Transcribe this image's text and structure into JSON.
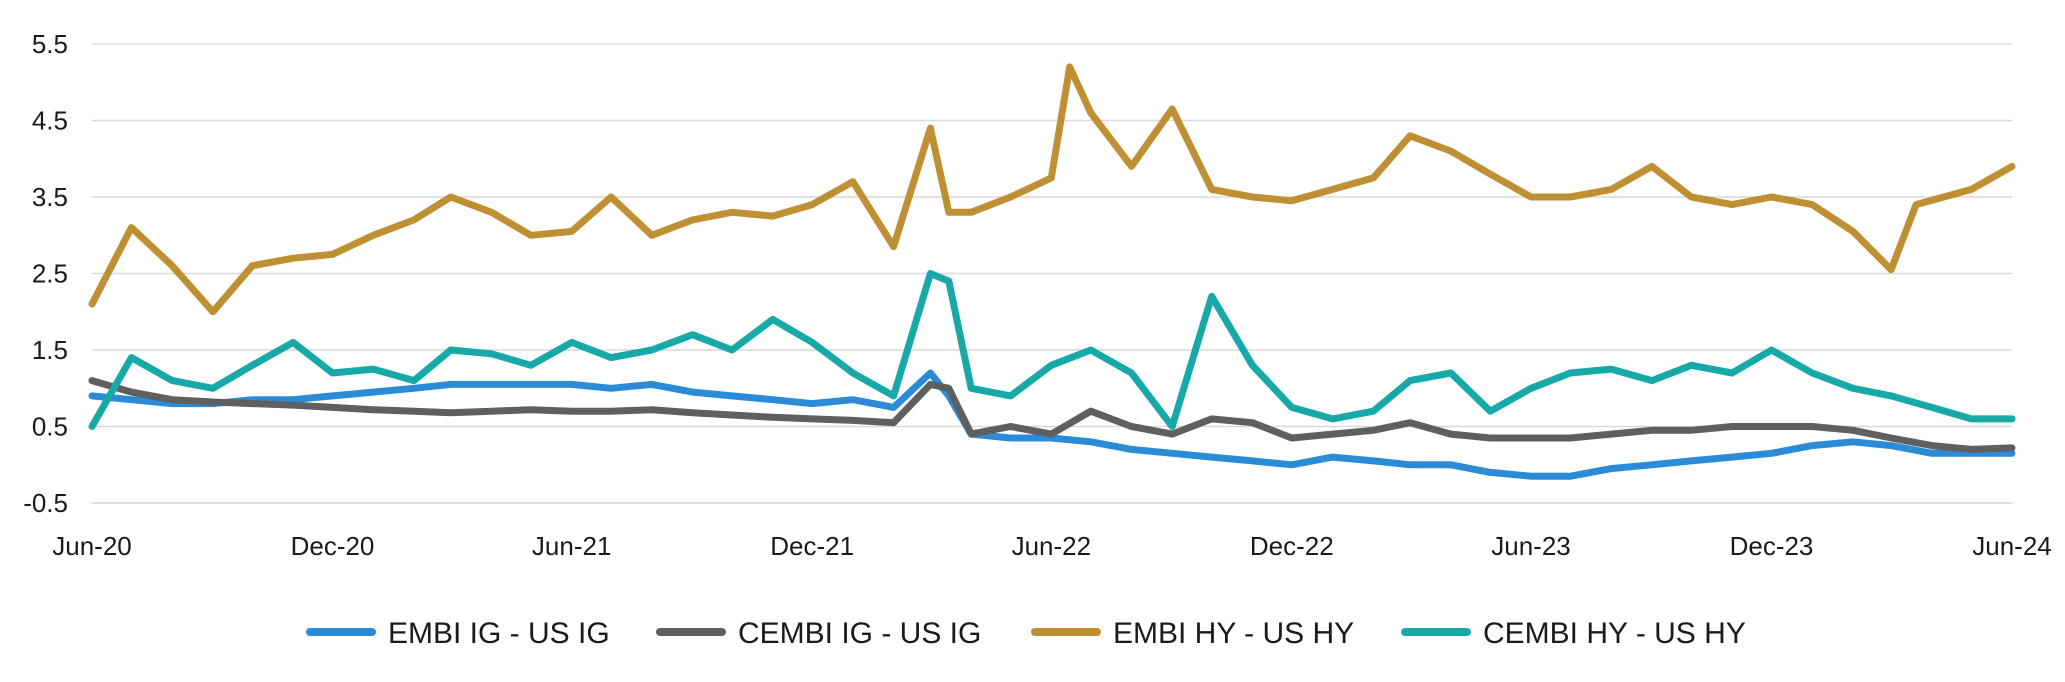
{
  "chart_data": {
    "type": "line",
    "title": "",
    "xlabel": "",
    "ylabel": "",
    "ylim": [
      -0.5,
      5.5
    ],
    "yticks": [
      -0.5,
      0.5,
      1.5,
      2.5,
      3.5,
      4.5,
      5.5
    ],
    "ytick_labels": [
      "-0.5",
      "0.5",
      "1.5",
      "2.5",
      "3.5",
      "4.5",
      "5.5"
    ],
    "xlim": [
      "2020-06-01",
      "2024-06-01"
    ],
    "xticks": [
      "2020-06-01",
      "2020-12-01",
      "2021-06-01",
      "2021-12-01",
      "2022-06-01",
      "2022-12-01",
      "2023-06-01",
      "2023-12-01",
      "2024-06-01"
    ],
    "xtick_labels": [
      "Jun-20",
      "Dec-20",
      "Jun-21",
      "Dec-21",
      "Jun-22",
      "Dec-22",
      "Jun-23",
      "Dec-23",
      "Jun-24"
    ],
    "grid": true,
    "legend_position": "bottom",
    "series": [
      {
        "name": "EMBI IG - US IG",
        "color": "#2a8bd6",
        "points": [
          [
            "2020-06-01",
            0.9
          ],
          [
            "2020-07-01",
            0.85
          ],
          [
            "2020-08-01",
            0.8
          ],
          [
            "2020-09-01",
            0.8
          ],
          [
            "2020-10-01",
            0.85
          ],
          [
            "2020-11-01",
            0.85
          ],
          [
            "2020-12-01",
            0.9
          ],
          [
            "2021-01-01",
            0.95
          ],
          [
            "2021-02-01",
            1.0
          ],
          [
            "2021-03-01",
            1.05
          ],
          [
            "2021-04-01",
            1.05
          ],
          [
            "2021-05-01",
            1.05
          ],
          [
            "2021-06-01",
            1.05
          ],
          [
            "2021-07-01",
            1.0
          ],
          [
            "2021-08-01",
            1.05
          ],
          [
            "2021-09-01",
            0.95
          ],
          [
            "2021-10-01",
            0.9
          ],
          [
            "2021-11-01",
            0.85
          ],
          [
            "2021-12-01",
            0.8
          ],
          [
            "2022-01-01",
            0.85
          ],
          [
            "2022-02-01",
            0.75
          ],
          [
            "2022-03-01",
            1.2
          ],
          [
            "2022-03-15",
            0.9
          ],
          [
            "2022-04-01",
            0.4
          ],
          [
            "2022-05-01",
            0.35
          ],
          [
            "2022-06-01",
            0.35
          ],
          [
            "2022-07-01",
            0.3
          ],
          [
            "2022-08-01",
            0.2
          ],
          [
            "2022-09-01",
            0.15
          ],
          [
            "2022-10-01",
            0.1
          ],
          [
            "2022-11-01",
            0.05
          ],
          [
            "2022-12-01",
            0.0
          ],
          [
            "2023-01-01",
            0.1
          ],
          [
            "2023-02-01",
            0.05
          ],
          [
            "2023-03-01",
            0.0
          ],
          [
            "2023-04-01",
            0.0
          ],
          [
            "2023-05-01",
            -0.1
          ],
          [
            "2023-06-01",
            -0.15
          ],
          [
            "2023-07-01",
            -0.15
          ],
          [
            "2023-08-01",
            -0.05
          ],
          [
            "2023-09-01",
            0.0
          ],
          [
            "2023-10-01",
            0.05
          ],
          [
            "2023-11-01",
            0.1
          ],
          [
            "2023-12-01",
            0.15
          ],
          [
            "2024-01-01",
            0.25
          ],
          [
            "2024-02-01",
            0.3
          ],
          [
            "2024-03-01",
            0.25
          ],
          [
            "2024-04-01",
            0.15
          ],
          [
            "2024-05-01",
            0.15
          ],
          [
            "2024-06-01",
            0.15
          ]
        ]
      },
      {
        "name": "CEMBI IG - US IG",
        "color": "#5f5f5f",
        "points": [
          [
            "2020-06-01",
            1.1
          ],
          [
            "2020-07-01",
            0.95
          ],
          [
            "2020-08-01",
            0.85
          ],
          [
            "2020-09-01",
            0.82
          ],
          [
            "2020-10-01",
            0.8
          ],
          [
            "2020-11-01",
            0.78
          ],
          [
            "2020-12-01",
            0.75
          ],
          [
            "2021-01-01",
            0.72
          ],
          [
            "2021-02-01",
            0.7
          ],
          [
            "2021-03-01",
            0.68
          ],
          [
            "2021-04-01",
            0.7
          ],
          [
            "2021-05-01",
            0.72
          ],
          [
            "2021-06-01",
            0.7
          ],
          [
            "2021-07-01",
            0.7
          ],
          [
            "2021-08-01",
            0.72
          ],
          [
            "2021-09-01",
            0.68
          ],
          [
            "2021-10-01",
            0.65
          ],
          [
            "2021-11-01",
            0.62
          ],
          [
            "2021-12-01",
            0.6
          ],
          [
            "2022-01-01",
            0.58
          ],
          [
            "2022-02-01",
            0.55
          ],
          [
            "2022-03-01",
            1.05
          ],
          [
            "2022-03-15",
            1.0
          ],
          [
            "2022-04-01",
            0.4
          ],
          [
            "2022-05-01",
            0.5
          ],
          [
            "2022-06-01",
            0.4
          ],
          [
            "2022-07-01",
            0.7
          ],
          [
            "2022-08-01",
            0.5
          ],
          [
            "2022-09-01",
            0.4
          ],
          [
            "2022-10-01",
            0.6
          ],
          [
            "2022-11-01",
            0.55
          ],
          [
            "2022-12-01",
            0.35
          ],
          [
            "2023-01-01",
            0.4
          ],
          [
            "2023-02-01",
            0.45
          ],
          [
            "2023-03-01",
            0.55
          ],
          [
            "2023-04-01",
            0.4
          ],
          [
            "2023-05-01",
            0.35
          ],
          [
            "2023-06-01",
            0.35
          ],
          [
            "2023-07-01",
            0.35
          ],
          [
            "2023-08-01",
            0.4
          ],
          [
            "2023-09-01",
            0.45
          ],
          [
            "2023-10-01",
            0.45
          ],
          [
            "2023-11-01",
            0.5
          ],
          [
            "2023-12-01",
            0.5
          ],
          [
            "2024-01-01",
            0.5
          ],
          [
            "2024-02-01",
            0.45
          ],
          [
            "2024-03-01",
            0.35
          ],
          [
            "2024-04-01",
            0.25
          ],
          [
            "2024-05-01",
            0.2
          ],
          [
            "2024-06-01",
            0.22
          ]
        ]
      },
      {
        "name": "EMBI HY - US HY",
        "color": "#bf9033",
        "points": [
          [
            "2020-06-01",
            2.1
          ],
          [
            "2020-07-01",
            3.1
          ],
          [
            "2020-08-01",
            2.6
          ],
          [
            "2020-09-01",
            2.0
          ],
          [
            "2020-10-01",
            2.6
          ],
          [
            "2020-11-01",
            2.7
          ],
          [
            "2020-12-01",
            2.75
          ],
          [
            "2021-01-01",
            3.0
          ],
          [
            "2021-02-01",
            3.2
          ],
          [
            "2021-03-01",
            3.5
          ],
          [
            "2021-04-01",
            3.3
          ],
          [
            "2021-05-01",
            3.0
          ],
          [
            "2021-06-01",
            3.05
          ],
          [
            "2021-07-01",
            3.5
          ],
          [
            "2021-08-01",
            3.0
          ],
          [
            "2021-09-01",
            3.2
          ],
          [
            "2021-10-01",
            3.3
          ],
          [
            "2021-11-01",
            3.25
          ],
          [
            "2021-12-01",
            3.4
          ],
          [
            "2022-01-01",
            3.7
          ],
          [
            "2022-02-01",
            2.85
          ],
          [
            "2022-03-01",
            4.4
          ],
          [
            "2022-03-15",
            3.3
          ],
          [
            "2022-04-01",
            3.3
          ],
          [
            "2022-05-01",
            3.5
          ],
          [
            "2022-06-01",
            3.75
          ],
          [
            "2022-06-15",
            5.2
          ],
          [
            "2022-07-01",
            4.6
          ],
          [
            "2022-08-01",
            3.9
          ],
          [
            "2022-09-01",
            4.65
          ],
          [
            "2022-10-01",
            3.6
          ],
          [
            "2022-11-01",
            3.5
          ],
          [
            "2022-12-01",
            3.45
          ],
          [
            "2023-01-01",
            3.6
          ],
          [
            "2023-02-01",
            3.75
          ],
          [
            "2023-03-01",
            4.3
          ],
          [
            "2023-04-01",
            4.1
          ],
          [
            "2023-05-01",
            3.8
          ],
          [
            "2023-06-01",
            3.5
          ],
          [
            "2023-07-01",
            3.5
          ],
          [
            "2023-08-01",
            3.6
          ],
          [
            "2023-09-01",
            3.9
          ],
          [
            "2023-10-01",
            3.5
          ],
          [
            "2023-11-01",
            3.4
          ],
          [
            "2023-12-01",
            3.5
          ],
          [
            "2024-01-01",
            3.4
          ],
          [
            "2024-02-01",
            3.05
          ],
          [
            "2024-03-01",
            2.55
          ],
          [
            "2024-03-20",
            3.4
          ],
          [
            "2024-05-01",
            3.6
          ],
          [
            "2024-06-01",
            3.9
          ]
        ]
      },
      {
        "name": "CEMBI HY - US HY",
        "color": "#17a9a7",
        "points": [
          [
            "2020-06-01",
            0.5
          ],
          [
            "2020-07-01",
            1.4
          ],
          [
            "2020-08-01",
            1.1
          ],
          [
            "2020-09-01",
            1.0
          ],
          [
            "2020-10-01",
            1.3
          ],
          [
            "2020-11-01",
            1.6
          ],
          [
            "2020-12-01",
            1.2
          ],
          [
            "2021-01-01",
            1.25
          ],
          [
            "2021-02-01",
            1.1
          ],
          [
            "2021-03-01",
            1.5
          ],
          [
            "2021-04-01",
            1.45
          ],
          [
            "2021-05-01",
            1.3
          ],
          [
            "2021-06-01",
            1.6
          ],
          [
            "2021-07-01",
            1.4
          ],
          [
            "2021-08-01",
            1.5
          ],
          [
            "2021-09-01",
            1.7
          ],
          [
            "2021-10-01",
            1.5
          ],
          [
            "2021-11-01",
            1.9
          ],
          [
            "2021-12-01",
            1.6
          ],
          [
            "2022-01-01",
            1.2
          ],
          [
            "2022-02-01",
            0.9
          ],
          [
            "2022-03-01",
            2.5
          ],
          [
            "2022-03-15",
            2.4
          ],
          [
            "2022-04-01",
            1.0
          ],
          [
            "2022-05-01",
            0.9
          ],
          [
            "2022-06-01",
            1.3
          ],
          [
            "2022-07-01",
            1.5
          ],
          [
            "2022-08-01",
            1.2
          ],
          [
            "2022-09-01",
            0.5
          ],
          [
            "2022-10-01",
            2.2
          ],
          [
            "2022-11-01",
            1.3
          ],
          [
            "2022-12-01",
            0.75
          ],
          [
            "2023-01-01",
            0.6
          ],
          [
            "2023-02-01",
            0.7
          ],
          [
            "2023-03-01",
            1.1
          ],
          [
            "2023-04-01",
            1.2
          ],
          [
            "2023-05-01",
            0.7
          ],
          [
            "2023-06-01",
            1.0
          ],
          [
            "2023-07-01",
            1.2
          ],
          [
            "2023-08-01",
            1.25
          ],
          [
            "2023-09-01",
            1.1
          ],
          [
            "2023-10-01",
            1.3
          ],
          [
            "2023-11-01",
            1.2
          ],
          [
            "2023-12-01",
            1.5
          ],
          [
            "2024-01-01",
            1.2
          ],
          [
            "2024-02-01",
            1.0
          ],
          [
            "2024-03-01",
            0.9
          ],
          [
            "2024-04-01",
            0.75
          ],
          [
            "2024-05-01",
            0.6
          ],
          [
            "2024-06-01",
            0.6
          ]
        ]
      }
    ]
  }
}
